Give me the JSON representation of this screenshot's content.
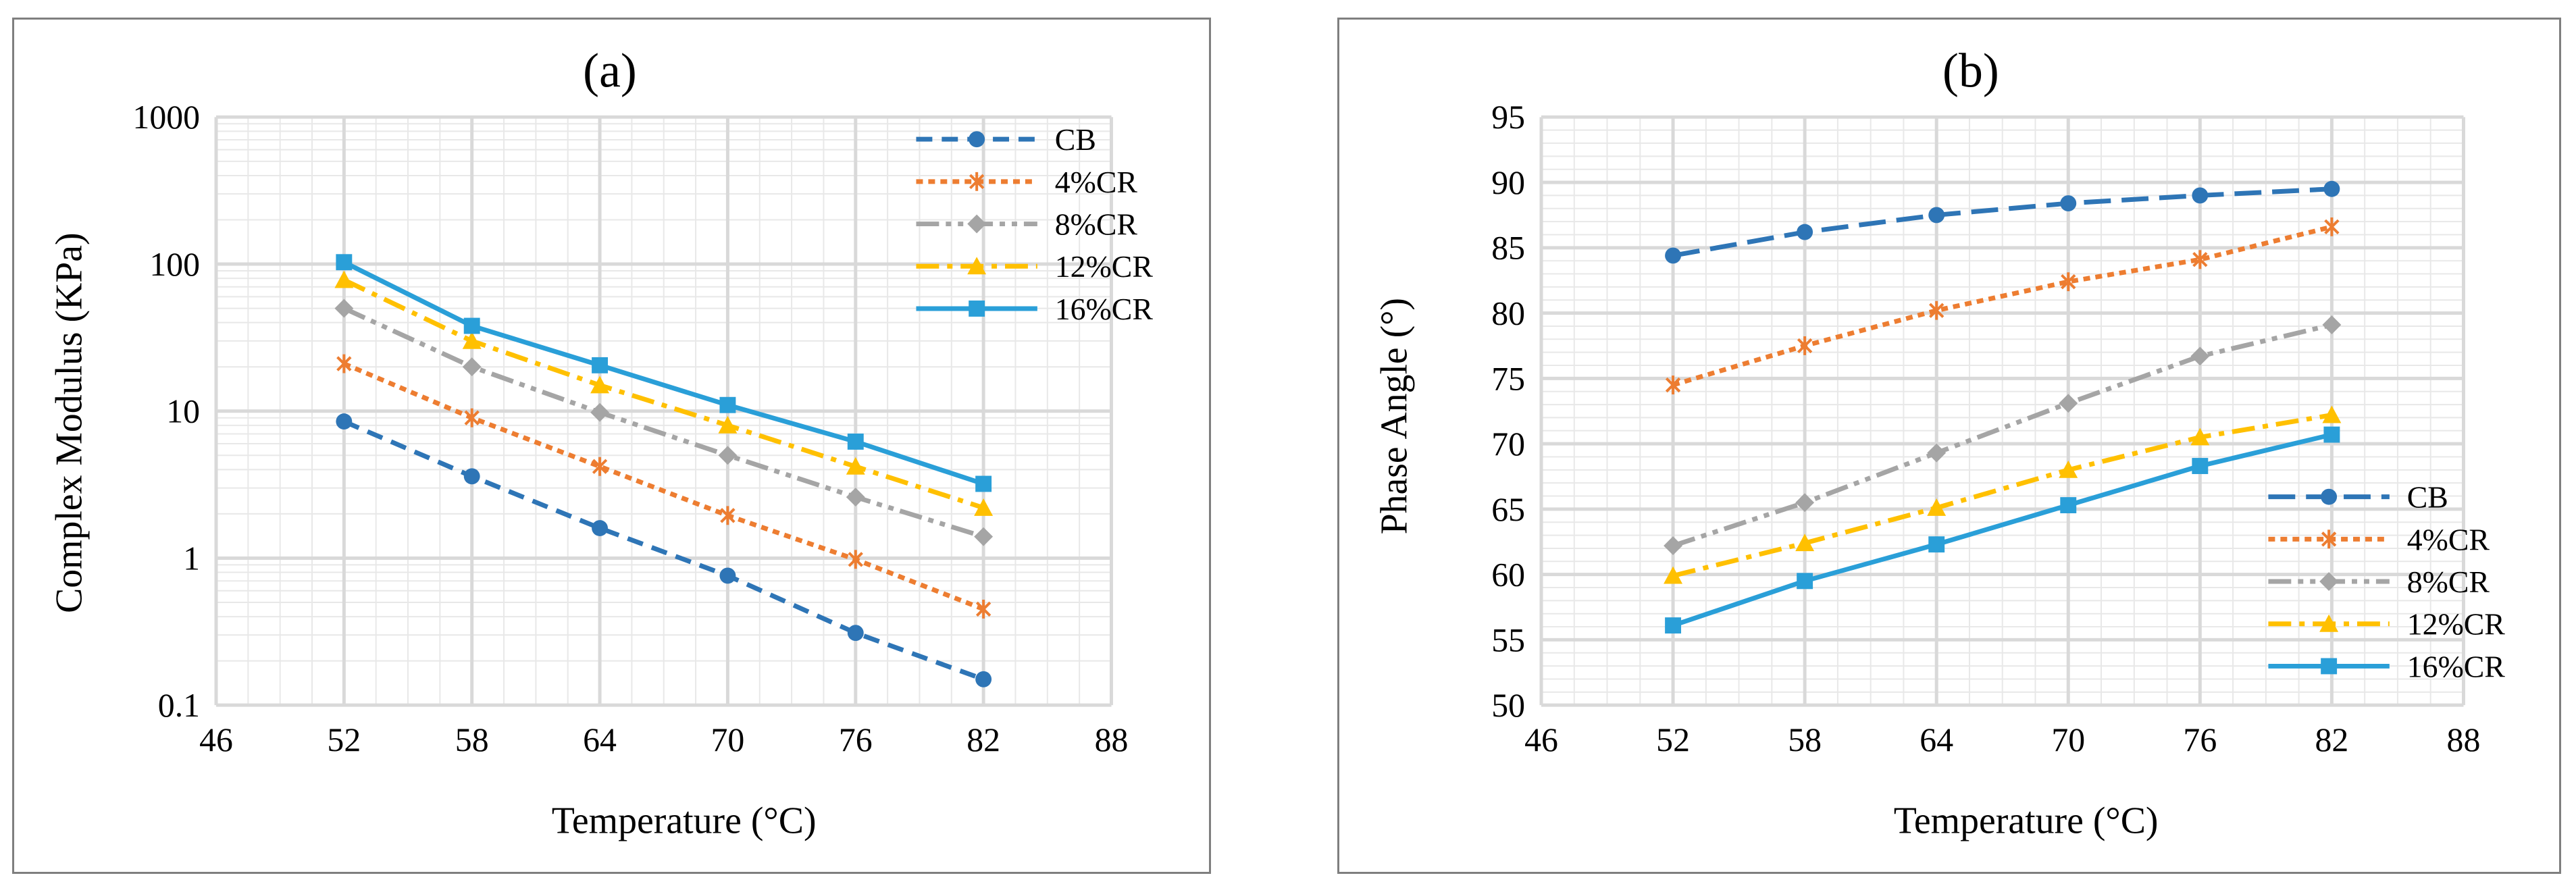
{
  "colors": {
    "CB": "#2e75b6",
    "4%CR": "#ed7d31",
    "8%CR": "#a5a5a5",
    "12%CR": "#ffc000",
    "16%CR": "#2a9fd8",
    "grid_major": "#d9d9d9",
    "grid_minor": "#e8e8e8",
    "frame": "#7f7f7f"
  },
  "chart_data": [
    {
      "type": "line",
      "title": "(a)",
      "xlabel": "Temperature (°C)",
      "ylabel": "Complex Modulus (KPa)",
      "yscale": "log",
      "xlim": [
        46,
        88
      ],
      "ylim": [
        0.1,
        1000
      ],
      "xticks": [
        "46",
        "52",
        "58",
        "64",
        "70",
        "76",
        "82",
        "88"
      ],
      "yticks": [
        "0.1",
        "1",
        "10",
        "100",
        "1000"
      ],
      "grid": true,
      "legend_position": "top-right",
      "x": [
        52,
        58,
        64,
        70,
        76,
        82
      ],
      "series": [
        {
          "name": "CB",
          "marker": "circle",
          "dash": "dashed",
          "values": [
            8.5,
            3.6,
            1.6,
            0.76,
            0.31,
            0.15
          ]
        },
        {
          "name": "4%CR",
          "marker": "star",
          "dash": "dotted",
          "values": [
            21,
            9,
            4.2,
            1.95,
            0.98,
            0.45
          ]
        },
        {
          "name": "8%CR",
          "marker": "diamond",
          "dash": "dashdotdot",
          "values": [
            50,
            20,
            9.8,
            5,
            2.6,
            1.4
          ]
        },
        {
          "name": "12%CR",
          "marker": "triangle",
          "dash": "dashdot",
          "values": [
            78,
            30,
            15,
            8,
            4.2,
            2.2
          ]
        },
        {
          "name": "16%CR",
          "marker": "square",
          "dash": "solid",
          "values": [
            103,
            38,
            20.5,
            11,
            6.2,
            3.2
          ]
        }
      ]
    },
    {
      "type": "line",
      "title": "(b)",
      "xlabel": "Temperature (°C)",
      "ylabel": "Phase Angle (°)",
      "yscale": "linear",
      "xlim": [
        46,
        88
      ],
      "ylim": [
        50,
        95
      ],
      "xticks": [
        "46",
        "52",
        "58",
        "64",
        "70",
        "76",
        "82",
        "88"
      ],
      "yticks": [
        "50",
        "55",
        "60",
        "65",
        "70",
        "75",
        "80",
        "85",
        "90",
        "95"
      ],
      "grid": true,
      "legend_position": "bottom-right",
      "x": [
        52,
        58,
        64,
        70,
        76,
        82
      ],
      "series": [
        {
          "name": "CB",
          "marker": "circle",
          "dash": "longdash",
          "values": [
            84.4,
            86.2,
            87.5,
            88.4,
            89,
            89.5
          ]
        },
        {
          "name": "4%CR",
          "marker": "star",
          "dash": "dotted",
          "values": [
            74.5,
            77.5,
            80.2,
            82.4,
            84.1,
            86.6
          ]
        },
        {
          "name": "8%CR",
          "marker": "diamond",
          "dash": "dashdotdot",
          "values": [
            62.2,
            65.5,
            69.3,
            73.1,
            76.7,
            79.1
          ]
        },
        {
          "name": "12%CR",
          "marker": "triangle",
          "dash": "dashdot",
          "values": [
            59.9,
            62.4,
            65.1,
            68,
            70.5,
            72.2
          ]
        },
        {
          "name": "16%CR",
          "marker": "square",
          "dash": "solid",
          "values": [
            56.1,
            59.5,
            62.3,
            65.3,
            68.3,
            70.7
          ]
        }
      ]
    }
  ]
}
